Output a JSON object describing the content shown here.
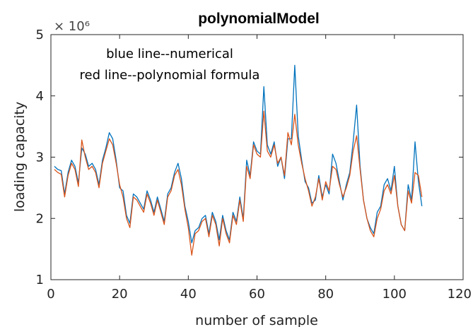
{
  "chart_data": {
    "type": "line",
    "title": "polynomialModel",
    "xlabel": "number of sample",
    "ylabel": "loading capacity",
    "xlim": [
      0,
      120
    ],
    "ylim": [
      1,
      5
    ],
    "y_exponent_label": "× 10⁶",
    "xticks": [
      "0",
      "20",
      "40",
      "60",
      "80",
      "100",
      "120"
    ],
    "yticks": [
      "1",
      "2",
      "3",
      "4",
      "5"
    ],
    "grid": false,
    "annotations": [
      "blue line--numerical",
      "red line--polynomial formula"
    ],
    "series": [
      {
        "color": "#0072BD",
        "values": [
          2.85,
          2.8,
          2.78,
          2.4,
          2.75,
          2.95,
          2.85,
          2.58,
          3.15,
          3.05,
          2.85,
          2.9,
          2.8,
          2.55,
          2.95,
          3.15,
          3.4,
          3.3,
          2.95,
          2.5,
          2.45,
          2.05,
          1.92,
          2.4,
          2.35,
          2.25,
          2.15,
          2.45,
          2.3,
          2.1,
          2.35,
          2.15,
          1.95,
          2.4,
          2.5,
          2.75,
          2.9,
          2.65,
          2.2,
          1.95,
          1.6,
          1.8,
          1.85,
          2.0,
          2.05,
          1.75,
          2.1,
          1.95,
          1.65,
          2.05,
          1.8,
          1.65,
          2.1,
          1.95,
          2.35,
          2.0,
          2.95,
          2.7,
          3.25,
          3.1,
          3.05,
          4.15,
          3.2,
          3.05,
          3.25,
          2.85,
          3.0,
          2.65,
          3.3,
          3.3,
          4.5,
          3.35,
          2.95,
          2.6,
          2.5,
          2.25,
          2.3,
          2.7,
          2.35,
          2.55,
          2.4,
          3.05,
          2.9,
          2.6,
          2.3,
          2.55,
          2.75,
          3.25,
          3.85,
          2.85,
          2.3,
          2.0,
          1.85,
          1.75,
          2.1,
          2.2,
          2.55,
          2.65,
          2.45,
          2.85,
          2.2,
          1.9,
          1.8,
          2.55,
          2.3,
          3.25,
          2.6,
          2.2
        ]
      },
      {
        "color": "#D95319",
        "values": [
          2.8,
          2.75,
          2.72,
          2.35,
          2.7,
          2.9,
          2.8,
          2.52,
          3.28,
          3.0,
          2.8,
          2.85,
          2.75,
          2.5,
          2.9,
          3.1,
          3.3,
          3.2,
          2.9,
          2.55,
          2.35,
          2.0,
          1.85,
          2.35,
          2.3,
          2.2,
          2.1,
          2.4,
          2.25,
          2.05,
          2.3,
          2.1,
          1.9,
          2.35,
          2.45,
          2.7,
          2.8,
          2.55,
          2.15,
          1.85,
          1.4,
          1.75,
          1.8,
          1.95,
          2.0,
          1.7,
          2.05,
          1.9,
          1.55,
          2.0,
          1.75,
          1.6,
          2.05,
          1.9,
          2.3,
          1.95,
          2.85,
          2.65,
          3.2,
          3.05,
          3.0,
          3.75,
          3.1,
          3.0,
          3.2,
          2.9,
          3.0,
          2.7,
          3.4,
          3.2,
          3.7,
          3.2,
          2.9,
          2.65,
          2.45,
          2.2,
          2.35,
          2.65,
          2.3,
          2.6,
          2.45,
          2.85,
          2.8,
          2.55,
          2.35,
          2.5,
          2.7,
          3.1,
          3.35,
          2.8,
          2.3,
          2.0,
          1.8,
          1.7,
          2.0,
          2.15,
          2.45,
          2.55,
          2.4,
          2.7,
          2.2,
          1.9,
          1.8,
          2.45,
          2.25,
          2.75,
          2.7,
          2.35
        ]
      }
    ]
  }
}
